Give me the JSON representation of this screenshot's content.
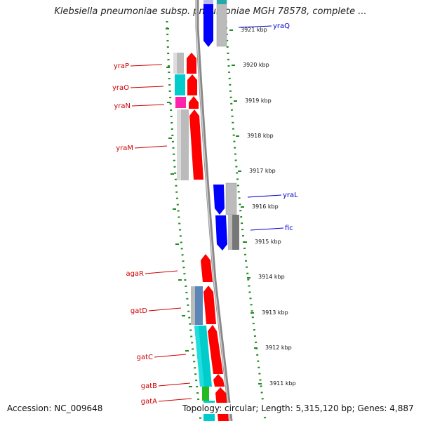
{
  "title": "Klebsiella pneumoniae subsp. pneumoniae MGH 78578, complete ...",
  "accession": "Accession: NC_009648",
  "topology": "Topology: circular; Length: 5,315,120 bp; Genes: 4,887",
  "colors": {
    "red": "#ff0000",
    "blue": "#0000ff",
    "cyan": "#00cccc",
    "magenta": "#ff22aa",
    "grey": "#bbbbbb",
    "darkgrey": "#777777",
    "green": "#22bb22",
    "steel": "#5a87b8",
    "dots": "#228822"
  },
  "ticks": [
    {
      "kbp": 3921,
      "label": "3921 kbp"
    },
    {
      "kbp": 3920,
      "label": "3920 kbp"
    },
    {
      "kbp": 3919,
      "label": "3919 kbp"
    },
    {
      "kbp": 3918,
      "label": "3918 kbp"
    },
    {
      "kbp": 3917,
      "label": "3917 kbp"
    },
    {
      "kbp": 3916,
      "label": "3916 kbp"
    },
    {
      "kbp": 3915,
      "label": "3915 kbp"
    },
    {
      "kbp": 3914,
      "label": "3914 kbp"
    },
    {
      "kbp": 3913,
      "label": "3913 kbp"
    },
    {
      "kbp": 3912,
      "label": "3912 kbp"
    },
    {
      "kbp": 3911,
      "label": "3911 kbp"
    }
  ],
  "gene_labels": [
    {
      "name": "yraQ",
      "strand": "reverse"
    },
    {
      "name": "yraP",
      "strand": "forward"
    },
    {
      "name": "yraO",
      "strand": "forward"
    },
    {
      "name": "yraN",
      "strand": "forward"
    },
    {
      "name": "yraM",
      "strand": "forward"
    },
    {
      "name": "yraL",
      "strand": "reverse"
    },
    {
      "name": "fic",
      "strand": "reverse"
    },
    {
      "name": "agaR",
      "strand": "forward"
    },
    {
      "name": "gatD",
      "strand": "forward"
    },
    {
      "name": "gatC",
      "strand": "forward"
    },
    {
      "name": "gatB",
      "strand": "forward"
    },
    {
      "name": "gatA",
      "strand": "forward"
    }
  ]
}
